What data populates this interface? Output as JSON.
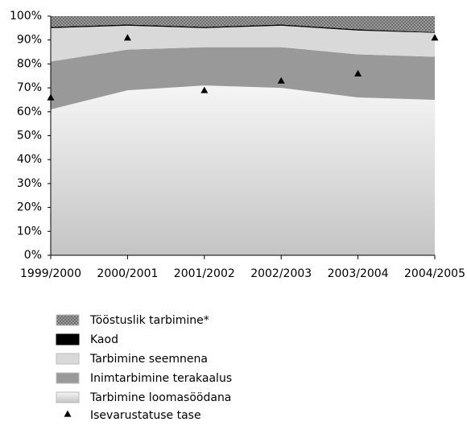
{
  "chart_data": {
    "type": "area",
    "stacked": true,
    "categories": [
      "1999/2000",
      "2000/2001",
      "2001/2002",
      "2002/2003",
      "2003/2004",
      "2004/2005"
    ],
    "series": [
      {
        "name": "Tarbimine loomasöödana",
        "color": "#d4d4d4",
        "values": [
          61,
          69,
          71,
          70,
          66,
          65
        ]
      },
      {
        "name": "Inimtarbimine terakaalus",
        "color": "#999999",
        "values": [
          20,
          17,
          16,
          17,
          18,
          18
        ]
      },
      {
        "name": "Tarbimine seemnena",
        "color": "#d9d9d9",
        "values": [
          14,
          10,
          8,
          9,
          10,
          10
        ]
      },
      {
        "name": "Kaod",
        "color": "#000000",
        "values": [
          0.5,
          0.5,
          0.5,
          0.5,
          0.5,
          0.3
        ]
      },
      {
        "name": "Tööstuslik tarbimine*",
        "color": "#8c8c8c",
        "values": [
          4.5,
          3.5,
          4.5,
          3.5,
          5.5,
          6.7
        ]
      }
    ],
    "markers": {
      "name": "Isevarustatuse tase",
      "color": "#000000",
      "values": [
        66,
        91,
        69,
        73,
        76,
        91
      ]
    },
    "ylim": [
      0,
      100
    ],
    "yticks": [
      {
        "value": 0,
        "label": "0%"
      },
      {
        "value": 10,
        "label": "10%"
      },
      {
        "value": 20,
        "label": "20%"
      },
      {
        "value": 30,
        "label": "30%"
      },
      {
        "value": 40,
        "label": "40%"
      },
      {
        "value": 50,
        "label": "50%"
      },
      {
        "value": 60,
        "label": "60%"
      },
      {
        "value": 70,
        "label": "70%"
      },
      {
        "value": 80,
        "label": "80%"
      },
      {
        "value": 90,
        "label": "90%"
      },
      {
        "value": 100,
        "label": "100%"
      }
    ],
    "grid": false,
    "legend": "bottom"
  }
}
